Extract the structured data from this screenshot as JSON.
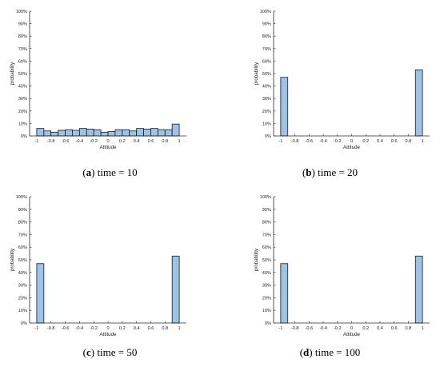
{
  "colors": {
    "bar_fill": "#9dc3e6",
    "bar_stroke": "#1a1a1a",
    "axis": "#262626"
  },
  "x_tick_labels": [
    "-1",
    "-0.8",
    "-0.6",
    "-0.4",
    "-0.2",
    "0",
    "0.2",
    "0.4",
    "0.6",
    "0.8",
    "1"
  ],
  "y_tick_labels": [
    "0%",
    "10%",
    "20%",
    "30%",
    "40%",
    "50%",
    "60%",
    "70%",
    "80%",
    "90%",
    "100%"
  ],
  "chart_data": [
    {
      "type": "bar",
      "panel": "a",
      "caption_label": "a",
      "caption_text": " time = 10",
      "xlabel": "Attitude",
      "ylabel": "probability",
      "xlim": [
        -1.1,
        1.1
      ],
      "ylim": [
        0,
        1
      ],
      "bin_width": 0.1,
      "x": [
        -0.95,
        -0.85,
        -0.75,
        -0.65,
        -0.55,
        -0.45,
        -0.35,
        -0.25,
        -0.15,
        -0.05,
        0.05,
        0.15,
        0.25,
        0.35,
        0.45,
        0.55,
        0.65,
        0.75,
        0.85,
        0.95
      ],
      "values": [
        0.06,
        0.04,
        0.03,
        0.045,
        0.05,
        0.045,
        0.06,
        0.055,
        0.05,
        0.03,
        0.035,
        0.05,
        0.05,
        0.04,
        0.06,
        0.055,
        0.06,
        0.05,
        0.05,
        0.095
      ]
    },
    {
      "type": "bar",
      "panel": "b",
      "caption_label": "b",
      "caption_text": " time = 20",
      "xlabel": "Attitude",
      "ylabel": "probability",
      "xlim": [
        -1.1,
        1.1
      ],
      "ylim": [
        0,
        1
      ],
      "bin_width": 0.1,
      "x": [
        -0.95,
        0.95
      ],
      "values": [
        0.47,
        0.53
      ]
    },
    {
      "type": "bar",
      "panel": "c",
      "caption_label": "c",
      "caption_text": " time = 50",
      "xlabel": "Attitude",
      "ylabel": "probability",
      "xlim": [
        -1.1,
        1.1
      ],
      "ylim": [
        0,
        1
      ],
      "bin_width": 0.1,
      "x": [
        -0.95,
        0.95
      ],
      "values": [
        0.47,
        0.53
      ]
    },
    {
      "type": "bar",
      "panel": "d",
      "caption_label": "d",
      "caption_text": " time = 100",
      "xlabel": "Attitude",
      "ylabel": "probability",
      "xlim": [
        -1.1,
        1.1
      ],
      "ylim": [
        0,
        1
      ],
      "bin_width": 0.1,
      "x": [
        -0.95,
        0.95
      ],
      "values": [
        0.47,
        0.53
      ]
    }
  ]
}
